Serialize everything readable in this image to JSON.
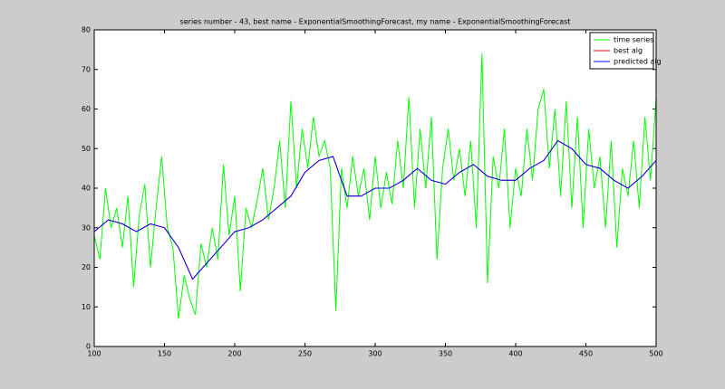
{
  "chart_data": {
    "type": "line",
    "title": "series number - 43, best name - ExponentialSmoothingForecast, my name - ExponentialSmoothingForecast",
    "xlim": [
      100,
      500
    ],
    "xticks": [
      100,
      150,
      200,
      250,
      300,
      350,
      400,
      450,
      500
    ],
    "ylim": [
      0,
      80
    ],
    "yticks": [
      0,
      10,
      20,
      30,
      40,
      50,
      60,
      70,
      80
    ],
    "legend": "upper right",
    "series": [
      {
        "name": "time series",
        "color": "#00ff00",
        "x": [
          100,
          104,
          108,
          112,
          116,
          120,
          124,
          128,
          132,
          136,
          140,
          144,
          148,
          152,
          156,
          160,
          164,
          168,
          172,
          176,
          180,
          184,
          188,
          192,
          196,
          200,
          204,
          208,
          212,
          216,
          220,
          224,
          228,
          232,
          236,
          240,
          244,
          248,
          252,
          256,
          260,
          264,
          268,
          272,
          276,
          280,
          284,
          288,
          292,
          296,
          300,
          304,
          308,
          312,
          316,
          320,
          324,
          328,
          332,
          336,
          340,
          344,
          348,
          352,
          356,
          360,
          364,
          368,
          372,
          376,
          380,
          384,
          388,
          392,
          396,
          400,
          404,
          408,
          412,
          416,
          420,
          424,
          428,
          432,
          436,
          440,
          444,
          448,
          452,
          456,
          460,
          464,
          468,
          472,
          476,
          480,
          484,
          488,
          492,
          496,
          500
        ],
        "values": [
          28,
          22,
          40,
          30,
          35,
          25,
          38,
          15,
          33,
          41,
          20,
          35,
          48,
          30,
          25,
          7,
          18,
          12,
          8,
          26,
          20,
          30,
          22,
          46,
          28,
          38,
          14,
          35,
          30,
          37,
          45,
          32,
          40,
          52,
          35,
          62,
          40,
          55,
          45,
          58,
          48,
          52,
          45,
          9,
          45,
          35,
          48,
          38,
          45,
          32,
          48,
          35,
          44,
          36,
          52,
          40,
          63,
          35,
          55,
          40,
          58,
          22,
          45,
          55,
          42,
          50,
          38,
          52,
          30,
          74,
          16,
          48,
          40,
          55,
          30,
          45,
          38,
          55,
          42,
          60,
          65,
          45,
          60,
          38,
          62,
          35,
          58,
          30,
          55,
          40,
          48,
          30,
          52,
          25,
          45,
          38,
          52,
          35,
          58,
          42,
          63
        ]
      },
      {
        "name": "best alg",
        "color": "#ff0000",
        "x": [
          100,
          110,
          120,
          130,
          140,
          150,
          160,
          170,
          180,
          190,
          200,
          210,
          220,
          230,
          240,
          250,
          260,
          270,
          280,
          290,
          300,
          310,
          320,
          330,
          340,
          350,
          360,
          370,
          380,
          390,
          400,
          410,
          420,
          430,
          440,
          450,
          460,
          470,
          480,
          490,
          500
        ],
        "values": [
          29,
          32,
          31,
          29,
          31,
          30,
          25,
          17,
          21,
          25,
          29,
          30,
          32,
          35,
          38,
          44,
          47,
          48,
          38,
          38,
          40,
          40,
          42,
          45,
          42,
          41,
          44,
          46,
          43,
          42,
          42,
          45,
          47,
          52,
          50,
          46,
          45,
          42,
          40,
          43,
          47
        ]
      },
      {
        "name": "predicted alg",
        "color": "#0000ff",
        "x": [
          100,
          110,
          120,
          130,
          140,
          150,
          160,
          170,
          180,
          190,
          200,
          210,
          220,
          230,
          240,
          250,
          260,
          270,
          280,
          290,
          300,
          310,
          320,
          330,
          340,
          350,
          360,
          370,
          380,
          390,
          400,
          410,
          420,
          430,
          440,
          450,
          460,
          470,
          480,
          490,
          500
        ],
        "values": [
          29,
          32,
          31,
          29,
          31,
          30,
          25,
          17,
          21,
          25,
          29,
          30,
          32,
          35,
          38,
          44,
          47,
          48,
          38,
          38,
          40,
          40,
          42,
          45,
          42,
          41,
          44,
          46,
          43,
          42,
          42,
          45,
          47,
          52,
          50,
          46,
          45,
          42,
          40,
          43,
          47
        ]
      }
    ]
  }
}
